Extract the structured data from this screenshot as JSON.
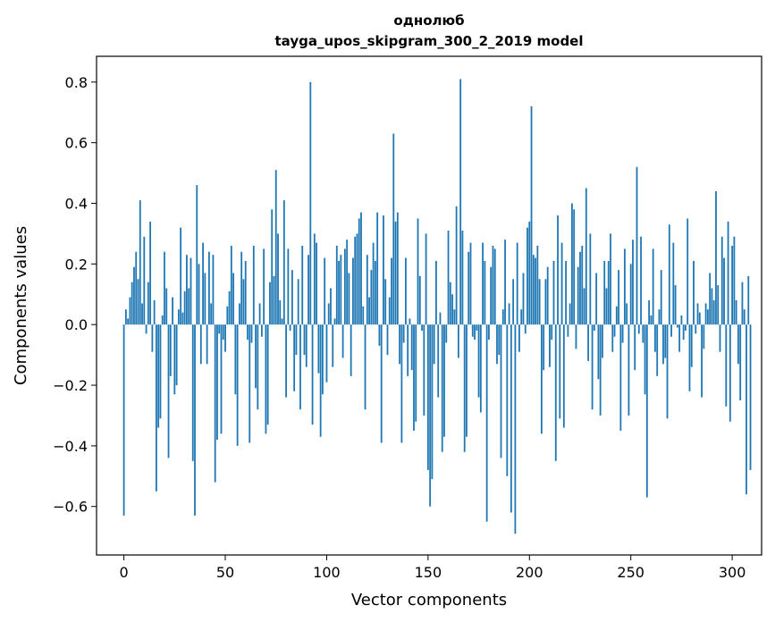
{
  "chart_data": {
    "type": "bar",
    "title": "однолюб",
    "subtitle": "tayga_upos_skipgram_300_2_2019 model",
    "xlabel": "Vector components",
    "ylabel": "Components values",
    "xlim": [
      -13.5,
      314.5
    ],
    "ylim": [
      -0.76,
      0.885
    ],
    "xticks": [
      0,
      50,
      100,
      150,
      200,
      250,
      300
    ],
    "xtick_labels": [
      "0",
      "50",
      "100",
      "150",
      "200",
      "250",
      "300"
    ],
    "yticks": [
      -0.6,
      -0.4,
      -0.2,
      0.0,
      0.2,
      0.4,
      0.6,
      0.8
    ],
    "ytick_labels": [
      "−0.6",
      "−0.4",
      "−0.2",
      "0.0",
      "0.2",
      "0.4",
      "0.6",
      "0.8"
    ],
    "grid": false,
    "bar_color": "#1f77b4",
    "values": [
      -0.63,
      0.05,
      0.02,
      0.09,
      0.14,
      0.19,
      0.24,
      0.15,
      0.41,
      0.07,
      0.29,
      -0.03,
      0.14,
      0.34,
      -0.09,
      0.08,
      -0.55,
      -0.34,
      -0.31,
      0.03,
      0.24,
      0.12,
      -0.44,
      -0.17,
      0.09,
      -0.23,
      -0.2,
      0.05,
      0.32,
      0.04,
      0.11,
      0.23,
      0.12,
      0.22,
      -0.45,
      -0.63,
      0.46,
      0.2,
      -0.13,
      0.27,
      0.17,
      -0.13,
      0.24,
      0.07,
      0.23,
      -0.52,
      -0.38,
      -0.03,
      -0.36,
      -0.05,
      -0.09,
      0.06,
      0.11,
      0.26,
      0.17,
      -0.23,
      -0.4,
      0.07,
      0.24,
      0.15,
      0.21,
      -0.05,
      -0.39,
      -0.06,
      0.26,
      -0.21,
      -0.28,
      0.07,
      -0.04,
      0.25,
      -0.36,
      -0.33,
      0.14,
      0.38,
      0.16,
      0.51,
      0.3,
      0.08,
      0.02,
      0.41,
      -0.24,
      0.25,
      -0.02,
      0.18,
      -0.22,
      -0.1,
      0.15,
      -0.28,
      0.26,
      -0.1,
      -0.14,
      0.23,
      0.8,
      -0.33,
      0.3,
      0.27,
      -0.16,
      -0.37,
      -0.23,
      0.22,
      -0.19,
      0.07,
      0.12,
      -0.14,
      0.02,
      0.26,
      0.21,
      0.23,
      -0.11,
      0.25,
      0.28,
      0.17,
      -0.17,
      0.22,
      0.29,
      0.3,
      0.35,
      0.37,
      0.06,
      -0.28,
      0.23,
      0.09,
      0.18,
      0.27,
      0.21,
      0.37,
      -0.07,
      -0.39,
      0.36,
      0.15,
      -0.1,
      0.09,
      0.22,
      0.63,
      0.34,
      0.37,
      -0.13,
      -0.39,
      -0.06,
      0.22,
      -0.17,
      0.02,
      -0.15,
      -0.35,
      -0.32,
      0.35,
      0.16,
      -0.02,
      -0.3,
      0.3,
      -0.48,
      -0.6,
      -0.51,
      -0.13,
      0.21,
      -0.24,
      0.04,
      -0.42,
      -0.37,
      -0.06,
      0.31,
      0.14,
      0.1,
      0.05,
      0.39,
      -0.11,
      0.81,
      0.31,
      -0.42,
      -0.37,
      0.24,
      0.27,
      -0.04,
      -0.05,
      -0.02,
      -0.24,
      -0.29,
      0.27,
      0.21,
      -0.65,
      -0.05,
      0.19,
      0.26,
      0.25,
      -0.13,
      -0.1,
      -0.44,
      0.05,
      0.28,
      -0.5,
      0.07,
      -0.62,
      0.15,
      -0.69,
      0.27,
      -0.09,
      0.05,
      0.17,
      -0.03,
      0.32,
      0.34,
      0.72,
      0.23,
      0.22,
      0.26,
      0.15,
      -0.36,
      -0.15,
      0.15,
      0.19,
      -0.14,
      -0.05,
      0.21,
      -0.45,
      0.36,
      -0.31,
      0.27,
      -0.34,
      0.21,
      -0.04,
      0.07,
      0.4,
      0.38,
      -0.08,
      0.19,
      0.24,
      0.26,
      0.12,
      0.45,
      -0.12,
      0.3,
      -0.28,
      -0.02,
      0.17,
      -0.18,
      -0.3,
      -0.11,
      0.21,
      0.12,
      0.21,
      0.3,
      -0.09,
      -0.04,
      0.06,
      0.18,
      -0.35,
      -0.06,
      0.25,
      0.07,
      -0.3,
      0.2,
      0.28,
      -0.15,
      0.52,
      -0.03,
      0.29,
      -0.06,
      -0.23,
      -0.57,
      0.08,
      0.03,
      0.25,
      -0.09,
      -0.17,
      0.05,
      0.18,
      -0.13,
      -0.11,
      -0.31,
      0.33,
      -0.04,
      0.27,
      0.13,
      -0.01,
      -0.09,
      0.03,
      -0.05,
      -0.02,
      0.35,
      -0.22,
      -0.14,
      0.21,
      -0.03,
      0.07,
      0.04,
      -0.24,
      -0.08,
      0.07,
      0.05,
      0.17,
      0.12,
      0.08,
      0.44,
      0.13,
      -0.09,
      0.29,
      0.22,
      -0.27,
      0.34,
      -0.32,
      0.26,
      0.29,
      0.08,
      -0.13,
      -0.25,
      0.14,
      0.05,
      -0.56,
      0.16,
      -0.48
    ]
  }
}
